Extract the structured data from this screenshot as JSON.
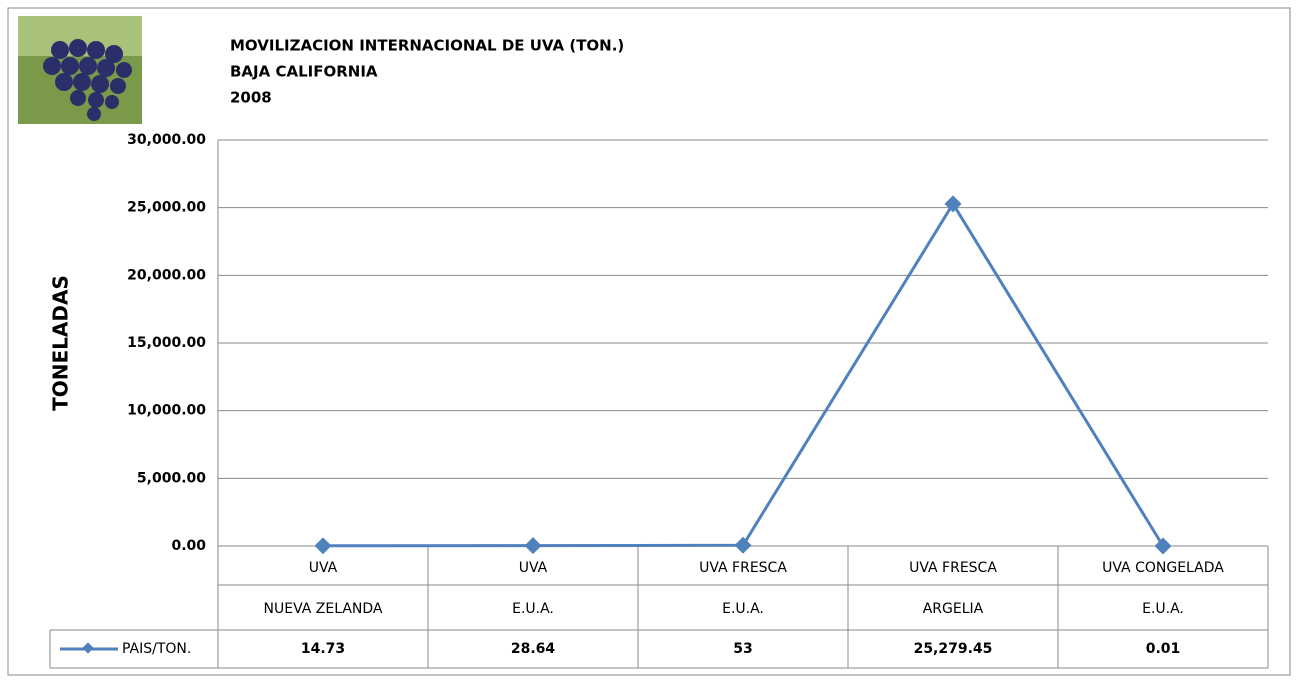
{
  "chart_data": {
    "type": "line",
    "title": [
      "MOVILIZACION INTERNACIONAL DE UVA  (TON.)",
      "BAJA CALIFORNIA",
      "2008"
    ],
    "y_label": "TONELADAS",
    "categories": [
      [
        "UVA",
        "NUEVA ZELANDA"
      ],
      [
        "UVA",
        "E.U.A."
      ],
      [
        "UVA FRESCA",
        "E.U.A."
      ],
      [
        "UVA FRESCA",
        "ARGELIA"
      ],
      [
        "UVA CONGELADA",
        "E.U.A."
      ]
    ],
    "series": [
      {
        "name": "PAIS/TON.",
        "color": "#4f81bd",
        "values": [
          14.73,
          28.64,
          53,
          25279.45,
          0.01
        ],
        "value_labels": [
          "14.73",
          "28.64",
          "53",
          "25,279.45",
          "0.01"
        ]
      }
    ],
    "ylim": [
      0,
      30000
    ],
    "yticks": [
      {
        "value": 0,
        "label": "0.00"
      },
      {
        "value": 5000,
        "label": "5,000.00"
      },
      {
        "value": 10000,
        "label": "10,000.00"
      },
      {
        "value": 15000,
        "label": "15,000.00"
      },
      {
        "value": 20000,
        "label": "20,000.00"
      },
      {
        "value": 25000,
        "label": "25,000.00"
      },
      {
        "value": 30000,
        "label": "30,000.00"
      }
    ],
    "grid": true
  }
}
